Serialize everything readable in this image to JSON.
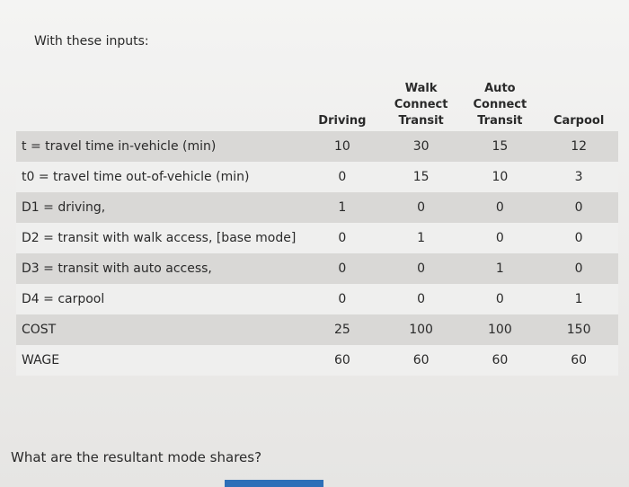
{
  "intro": "With these inputs:",
  "table": {
    "columns": [
      "Driving",
      "Walk Connect Transit",
      "Auto Connect Transit",
      "Carpool"
    ],
    "rows": [
      {
        "label": "t = travel time in-vehicle (min)",
        "values": [
          10,
          30,
          15,
          12
        ]
      },
      {
        "label": "t0 = travel time out-of-vehicle (min)",
        "values": [
          0,
          15,
          10,
          3
        ]
      },
      {
        "label": "D1 = driving,",
        "values": [
          1,
          0,
          0,
          0
        ]
      },
      {
        "label": "D2 = transit with walk access, [base mode]",
        "values": [
          0,
          1,
          0,
          0
        ]
      },
      {
        "label": "D3 = transit with auto access,",
        "values": [
          0,
          0,
          1,
          0
        ]
      },
      {
        "label": "D4 = carpool",
        "values": [
          0,
          0,
          0,
          1
        ]
      },
      {
        "label": "COST",
        "values": [
          25,
          100,
          100,
          150
        ]
      },
      {
        "label": "WAGE",
        "values": [
          60,
          60,
          60,
          60
        ]
      }
    ]
  },
  "question": "What are the resultant mode shares?"
}
